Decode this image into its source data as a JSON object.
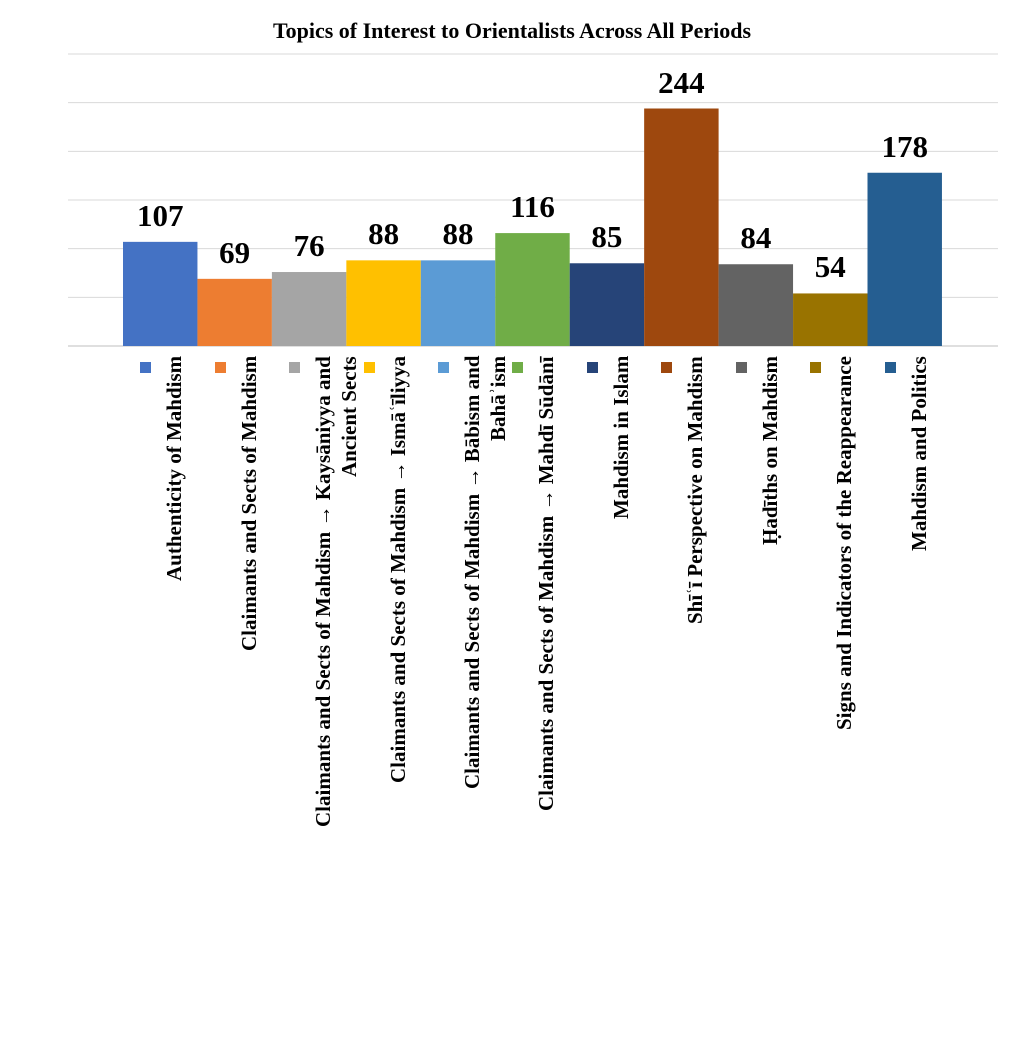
{
  "chart_data": {
    "type": "bar",
    "title": "Topics of Interest to Orientalists Across All Periods",
    "xlabel": "",
    "ylabel": "",
    "ylim": [
      0,
      300
    ],
    "grid": true,
    "gridline_step": 50,
    "legend": "bottom, inline with category labels",
    "categories": [
      {
        "label": "Authenticity of Mahdism",
        "lines": [
          "Authenticity of Mahdism"
        ]
      },
      {
        "label": "Claimants and Sects of Mahdism",
        "lines": [
          "Claimants and Sects of Mahdism"
        ]
      },
      {
        "label": "Claimants and Sects of Mahdism → Kaysāniyya and Ancient Sects",
        "lines": [
          "Claimants and Sects of Mahdism → Kaysāniyya and",
          "Ancient Sects"
        ]
      },
      {
        "label": "Claimants and Sects of Mahdism → Ismāʿīliyya",
        "lines": [
          "Claimants and Sects of Mahdism → Ismāʿīliyya"
        ]
      },
      {
        "label": "Claimants and Sects of Mahdism → Bābism and Bahāʾism",
        "lines": [
          "Claimants and Sects of Mahdism → Bābism and",
          "Bahāʾism"
        ]
      },
      {
        "label": "Claimants and Sects of Mahdism → Mahdī Sūdānī",
        "lines": [
          "Claimants and Sects of Mahdism → Mahdī Sūdānī"
        ]
      },
      {
        "label": "Mahdism in Islam",
        "lines": [
          "Mahdism in Islam"
        ]
      },
      {
        "label": "Shīʿī Perspective on Mahdism",
        "lines": [
          "Shīʿī Perspective on Mahdism"
        ]
      },
      {
        "label": "Ḥadīths on Mahdism",
        "lines": [
          "Ḥadīths on Mahdism"
        ]
      },
      {
        "label": "Signs and Indicators of the Reappearance",
        "lines": [
          "Signs and Indicators of the Reappearance"
        ]
      },
      {
        "label": "Mahdism and Politics",
        "lines": [
          "Mahdism and Politics"
        ]
      }
    ],
    "values": [
      107,
      69,
      76,
      88,
      88,
      116,
      85,
      244,
      84,
      54,
      178
    ],
    "colors": [
      "#4472C4",
      "#ED7D31",
      "#A5A5A5",
      "#FFC000",
      "#5B9BD5",
      "#70AD47",
      "#264478",
      "#9E480E",
      "#636363",
      "#997300",
      "#255E91"
    ]
  }
}
